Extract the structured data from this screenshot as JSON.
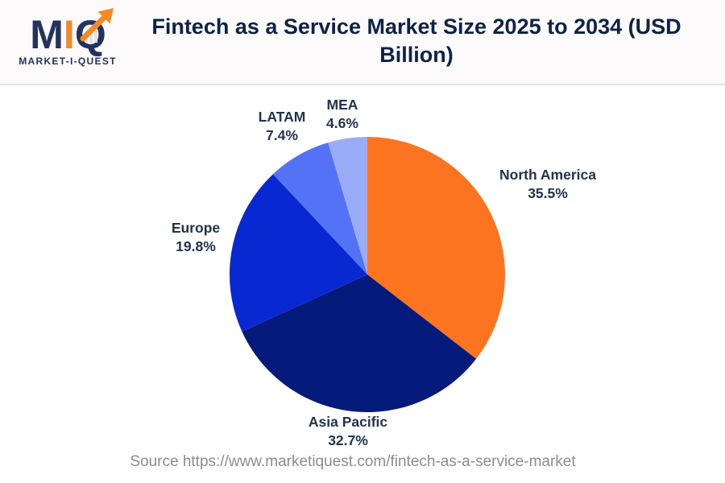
{
  "logo": {
    "letters": {
      "m": "M",
      "i": "I",
      "q": "Q"
    },
    "tagline": "MARKET-I-QUEST",
    "navy": "#22335f",
    "orange": "#f68a22"
  },
  "header": {
    "title": "Fintech as a Service Market Size 2025 to 2034 (USD Billion)"
  },
  "chart_data": {
    "type": "pie",
    "title": "Fintech as a Service Market Size 2025 to 2034 (USD Billion)",
    "unit": "percent",
    "start_angle_deg": 0,
    "direction": "clockwise",
    "legend": "labels-outside",
    "slices": [
      {
        "name": "North America",
        "value": 35.5,
        "pct_label": "35.5%",
        "color": "#fc7420"
      },
      {
        "name": "Asia Pacific",
        "value": 32.7,
        "pct_label": "32.7%",
        "color": "#051b7c"
      },
      {
        "name": "Europe",
        "value": 19.8,
        "pct_label": "19.8%",
        "color": "#0829d1"
      },
      {
        "name": "LATAM",
        "value": 7.4,
        "pct_label": "7.4%",
        "color": "#5372f5"
      },
      {
        "name": "MEA",
        "value": 4.6,
        "pct_label": "4.6%",
        "color": "#9aabf8"
      }
    ]
  },
  "footer": {
    "source": "Source https://www.marketiquest.com/fintech-as-a-service-market"
  }
}
